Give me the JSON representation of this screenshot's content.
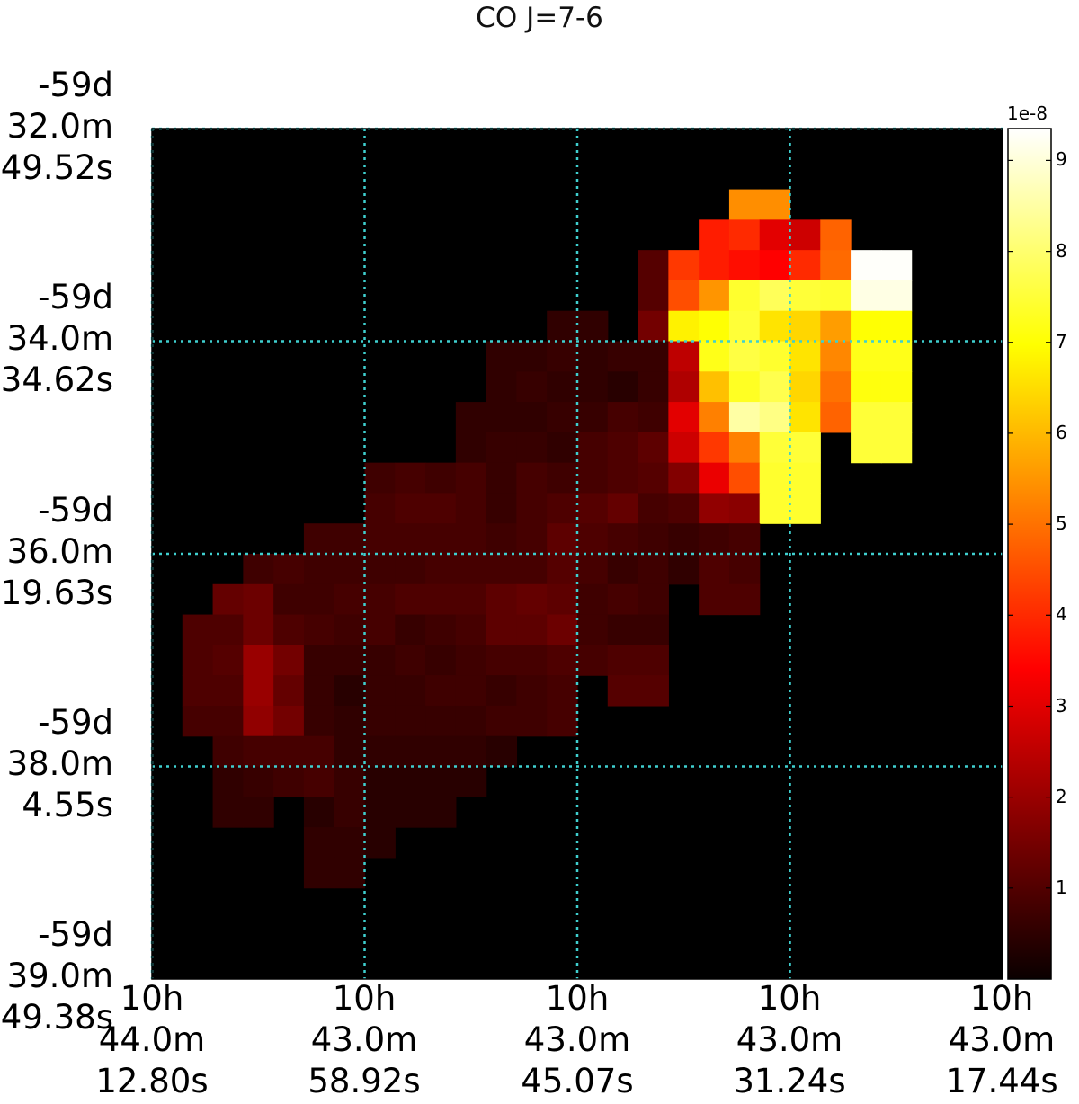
{
  "chart_data": {
    "type": "heatmap",
    "title": "CO J=7-6",
    "x_tick_labels": [
      "10h\n44.0m\n12.80s",
      "10h\n43.0m\n58.92s",
      "10h\n43.0m\n45.07s",
      "10h\n43.0m\n31.24s",
      "10h\n43.0m\n17.44s"
    ],
    "y_tick_labels": [
      "-59d\n32.0m\n49.52s",
      "-59d\n34.0m\n34.62s",
      "-59d\n36.0m\n19.63s",
      "-59d\n38.0m\n4.55s",
      "-59d\n39.0m\n49.38s"
    ],
    "grid": true,
    "grid_color": "#3fd0d0",
    "colormap": "hot",
    "colorbar": {
      "exponent_label": "1e-8",
      "tick_labels": [
        "1",
        "2",
        "3",
        "4",
        "5",
        "6",
        "7",
        "8",
        "9"
      ],
      "vmin": 0,
      "vmax": 9.35
    },
    "pixels": [
      {
        "x": 19,
        "y": 2,
        "v": 5.4
      },
      {
        "x": 20,
        "y": 2,
        "v": 5.4
      },
      {
        "x": 18,
        "y": 3,
        "v": 3.8
      },
      {
        "x": 19,
        "y": 3,
        "v": 4.0
      },
      {
        "x": 20,
        "y": 3,
        "v": 2.9
      },
      {
        "x": 21,
        "y": 3,
        "v": 2.6
      },
      {
        "x": 22,
        "y": 3,
        "v": 4.8
      },
      {
        "x": 16,
        "y": 4,
        "v": 1.0
      },
      {
        "x": 17,
        "y": 4,
        "v": 4.2
      },
      {
        "x": 18,
        "y": 4,
        "v": 3.8
      },
      {
        "x": 19,
        "y": 4,
        "v": 3.6
      },
      {
        "x": 20,
        "y": 4,
        "v": 3.4
      },
      {
        "x": 21,
        "y": 4,
        "v": 4.0
      },
      {
        "x": 22,
        "y": 4,
        "v": 4.9
      },
      {
        "x": 23,
        "y": 4,
        "v": 9.3
      },
      {
        "x": 24,
        "y": 4,
        "v": 9.3
      },
      {
        "x": 16,
        "y": 5,
        "v": 1.0
      },
      {
        "x": 17,
        "y": 5,
        "v": 4.5
      },
      {
        "x": 18,
        "y": 5,
        "v": 5.5
      },
      {
        "x": 19,
        "y": 5,
        "v": 7.4
      },
      {
        "x": 20,
        "y": 5,
        "v": 7.8
      },
      {
        "x": 21,
        "y": 5,
        "v": 7.5
      },
      {
        "x": 22,
        "y": 5,
        "v": 7.4
      },
      {
        "x": 23,
        "y": 5,
        "v": 9.1
      },
      {
        "x": 24,
        "y": 5,
        "v": 9.1
      },
      {
        "x": 13,
        "y": 6,
        "v": 0.5
      },
      {
        "x": 14,
        "y": 6,
        "v": 0.5
      },
      {
        "x": 16,
        "y": 6,
        "v": 1.4
      },
      {
        "x": 17,
        "y": 6,
        "v": 6.8
      },
      {
        "x": 18,
        "y": 6,
        "v": 7.0
      },
      {
        "x": 19,
        "y": 6,
        "v": 7.5
      },
      {
        "x": 20,
        "y": 6,
        "v": 6.6
      },
      {
        "x": 21,
        "y": 6,
        "v": 6.4
      },
      {
        "x": 22,
        "y": 6,
        "v": 5.6
      },
      {
        "x": 23,
        "y": 6,
        "v": 7.0
      },
      {
        "x": 24,
        "y": 6,
        "v": 7.0
      },
      {
        "x": 11,
        "y": 7,
        "v": 0.5
      },
      {
        "x": 12,
        "y": 7,
        "v": 0.5
      },
      {
        "x": 13,
        "y": 7,
        "v": 0.6
      },
      {
        "x": 14,
        "y": 7,
        "v": 0.5
      },
      {
        "x": 15,
        "y": 7,
        "v": 0.6
      },
      {
        "x": 16,
        "y": 7,
        "v": 0.6
      },
      {
        "x": 17,
        "y": 7,
        "v": 2.4
      },
      {
        "x": 18,
        "y": 7,
        "v": 7.2
      },
      {
        "x": 19,
        "y": 7,
        "v": 7.6
      },
      {
        "x": 20,
        "y": 7,
        "v": 7.4
      },
      {
        "x": 21,
        "y": 7,
        "v": 6.6
      },
      {
        "x": 22,
        "y": 7,
        "v": 5.3
      },
      {
        "x": 23,
        "y": 7,
        "v": 7.2
      },
      {
        "x": 24,
        "y": 7,
        "v": 7.2
      },
      {
        "x": 11,
        "y": 8,
        "v": 0.5
      },
      {
        "x": 12,
        "y": 8,
        "v": 0.6
      },
      {
        "x": 13,
        "y": 8,
        "v": 0.5
      },
      {
        "x": 14,
        "y": 8,
        "v": 0.5
      },
      {
        "x": 15,
        "y": 8,
        "v": 0.4
      },
      {
        "x": 16,
        "y": 8,
        "v": 0.6
      },
      {
        "x": 17,
        "y": 8,
        "v": 2.2
      },
      {
        "x": 18,
        "y": 8,
        "v": 6.1
      },
      {
        "x": 19,
        "y": 8,
        "v": 7.3
      },
      {
        "x": 20,
        "y": 8,
        "v": 7.7
      },
      {
        "x": 21,
        "y": 8,
        "v": 6.4
      },
      {
        "x": 22,
        "y": 8,
        "v": 5.0
      },
      {
        "x": 23,
        "y": 8,
        "v": 7.1
      },
      {
        "x": 24,
        "y": 8,
        "v": 7.1
      },
      {
        "x": 10,
        "y": 9,
        "v": 0.5
      },
      {
        "x": 11,
        "y": 9,
        "v": 0.5
      },
      {
        "x": 12,
        "y": 9,
        "v": 0.5
      },
      {
        "x": 13,
        "y": 9,
        "v": 0.6
      },
      {
        "x": 14,
        "y": 9,
        "v": 0.6
      },
      {
        "x": 15,
        "y": 9,
        "v": 0.8
      },
      {
        "x": 16,
        "y": 9,
        "v": 0.7
      },
      {
        "x": 17,
        "y": 9,
        "v": 2.9
      },
      {
        "x": 18,
        "y": 9,
        "v": 5.2
      },
      {
        "x": 19,
        "y": 9,
        "v": 8.5
      },
      {
        "x": 20,
        "y": 9,
        "v": 8.2
      },
      {
        "x": 21,
        "y": 9,
        "v": 6.6
      },
      {
        "x": 22,
        "y": 9,
        "v": 4.8
      },
      {
        "x": 23,
        "y": 9,
        "v": 7.5
      },
      {
        "x": 24,
        "y": 9,
        "v": 7.5
      },
      {
        "x": 10,
        "y": 10,
        "v": 0.5
      },
      {
        "x": 11,
        "y": 10,
        "v": 0.6
      },
      {
        "x": 12,
        "y": 10,
        "v": 0.6
      },
      {
        "x": 13,
        "y": 10,
        "v": 0.5
      },
      {
        "x": 14,
        "y": 10,
        "v": 0.8
      },
      {
        "x": 15,
        "y": 10,
        "v": 0.9
      },
      {
        "x": 16,
        "y": 10,
        "v": 1.1
      },
      {
        "x": 17,
        "y": 10,
        "v": 2.6
      },
      {
        "x": 18,
        "y": 10,
        "v": 4.2
      },
      {
        "x": 19,
        "y": 10,
        "v": 5.2
      },
      {
        "x": 20,
        "y": 10,
        "v": 7.5
      },
      {
        "x": 21,
        "y": 10,
        "v": 7.5
      },
      {
        "x": 23,
        "y": 10,
        "v": 7.5
      },
      {
        "x": 24,
        "y": 10,
        "v": 7.5
      },
      {
        "x": 7,
        "y": 11,
        "v": 0.7
      },
      {
        "x": 8,
        "y": 11,
        "v": 0.8
      },
      {
        "x": 9,
        "y": 11,
        "v": 0.7
      },
      {
        "x": 10,
        "y": 11,
        "v": 0.8
      },
      {
        "x": 11,
        "y": 11,
        "v": 0.6
      },
      {
        "x": 12,
        "y": 11,
        "v": 0.8
      },
      {
        "x": 13,
        "y": 11,
        "v": 0.7
      },
      {
        "x": 14,
        "y": 11,
        "v": 0.8
      },
      {
        "x": 15,
        "y": 11,
        "v": 0.9
      },
      {
        "x": 16,
        "y": 11,
        "v": 1.0
      },
      {
        "x": 17,
        "y": 11,
        "v": 1.6
      },
      {
        "x": 18,
        "y": 11,
        "v": 3.0
      },
      {
        "x": 19,
        "y": 11,
        "v": 4.5
      },
      {
        "x": 20,
        "y": 11,
        "v": 7.4
      },
      {
        "x": 21,
        "y": 11,
        "v": 7.4
      },
      {
        "x": 7,
        "y": 12,
        "v": 0.8
      },
      {
        "x": 8,
        "y": 12,
        "v": 0.9
      },
      {
        "x": 9,
        "y": 12,
        "v": 0.9
      },
      {
        "x": 10,
        "y": 12,
        "v": 0.8
      },
      {
        "x": 11,
        "y": 12,
        "v": 0.6
      },
      {
        "x": 12,
        "y": 12,
        "v": 0.8
      },
      {
        "x": 13,
        "y": 12,
        "v": 0.9
      },
      {
        "x": 14,
        "y": 12,
        "v": 1.0
      },
      {
        "x": 15,
        "y": 12,
        "v": 1.2
      },
      {
        "x": 16,
        "y": 12,
        "v": 0.8
      },
      {
        "x": 17,
        "y": 12,
        "v": 0.9
      },
      {
        "x": 18,
        "y": 12,
        "v": 1.8
      },
      {
        "x": 19,
        "y": 12,
        "v": 1.7
      },
      {
        "x": 20,
        "y": 12,
        "v": 7.4
      },
      {
        "x": 21,
        "y": 12,
        "v": 7.4
      },
      {
        "x": 5,
        "y": 13,
        "v": 0.7
      },
      {
        "x": 6,
        "y": 13,
        "v": 0.7
      },
      {
        "x": 7,
        "y": 13,
        "v": 0.8
      },
      {
        "x": 8,
        "y": 13,
        "v": 0.8
      },
      {
        "x": 9,
        "y": 13,
        "v": 0.8
      },
      {
        "x": 10,
        "y": 13,
        "v": 0.8
      },
      {
        "x": 11,
        "y": 13,
        "v": 0.7
      },
      {
        "x": 12,
        "y": 13,
        "v": 0.8
      },
      {
        "x": 13,
        "y": 13,
        "v": 1.1
      },
      {
        "x": 14,
        "y": 13,
        "v": 0.9
      },
      {
        "x": 15,
        "y": 13,
        "v": 0.8
      },
      {
        "x": 16,
        "y": 13,
        "v": 0.7
      },
      {
        "x": 17,
        "y": 13,
        "v": 0.6
      },
      {
        "x": 18,
        "y": 13,
        "v": 0.7
      },
      {
        "x": 19,
        "y": 13,
        "v": 0.8
      },
      {
        "x": 3,
        "y": 14,
        "v": 0.7
      },
      {
        "x": 4,
        "y": 14,
        "v": 0.8
      },
      {
        "x": 5,
        "y": 14,
        "v": 0.7
      },
      {
        "x": 6,
        "y": 14,
        "v": 0.7
      },
      {
        "x": 7,
        "y": 14,
        "v": 0.7
      },
      {
        "x": 8,
        "y": 14,
        "v": 0.7
      },
      {
        "x": 9,
        "y": 14,
        "v": 0.8
      },
      {
        "x": 10,
        "y": 14,
        "v": 0.8
      },
      {
        "x": 11,
        "y": 14,
        "v": 0.8
      },
      {
        "x": 12,
        "y": 14,
        "v": 0.8
      },
      {
        "x": 13,
        "y": 14,
        "v": 1.0
      },
      {
        "x": 14,
        "y": 14,
        "v": 0.8
      },
      {
        "x": 15,
        "y": 14,
        "v": 0.6
      },
      {
        "x": 16,
        "y": 14,
        "v": 0.7
      },
      {
        "x": 17,
        "y": 14,
        "v": 0.5
      },
      {
        "x": 18,
        "y": 14,
        "v": 0.9
      },
      {
        "x": 19,
        "y": 14,
        "v": 0.8
      },
      {
        "x": 2,
        "y": 15,
        "v": 1.2
      },
      {
        "x": 3,
        "y": 15,
        "v": 1.3
      },
      {
        "x": 4,
        "y": 15,
        "v": 0.7
      },
      {
        "x": 5,
        "y": 15,
        "v": 0.7
      },
      {
        "x": 6,
        "y": 15,
        "v": 0.8
      },
      {
        "x": 7,
        "y": 15,
        "v": 0.8
      },
      {
        "x": 8,
        "y": 15,
        "v": 0.9
      },
      {
        "x": 9,
        "y": 15,
        "v": 0.9
      },
      {
        "x": 10,
        "y": 15,
        "v": 0.9
      },
      {
        "x": 11,
        "y": 15,
        "v": 1.1
      },
      {
        "x": 12,
        "y": 15,
        "v": 1.2
      },
      {
        "x": 13,
        "y": 15,
        "v": 1.1
      },
      {
        "x": 14,
        "y": 15,
        "v": 0.7
      },
      {
        "x": 15,
        "y": 15,
        "v": 0.8
      },
      {
        "x": 16,
        "y": 15,
        "v": 0.7
      },
      {
        "x": 18,
        "y": 15,
        "v": 0.9
      },
      {
        "x": 19,
        "y": 15,
        "v": 0.9
      },
      {
        "x": 1,
        "y": 16,
        "v": 0.9
      },
      {
        "x": 2,
        "y": 16,
        "v": 0.9
      },
      {
        "x": 3,
        "y": 16,
        "v": 1.3
      },
      {
        "x": 4,
        "y": 16,
        "v": 0.9
      },
      {
        "x": 5,
        "y": 16,
        "v": 0.8
      },
      {
        "x": 6,
        "y": 16,
        "v": 0.7
      },
      {
        "x": 7,
        "y": 16,
        "v": 0.8
      },
      {
        "x": 8,
        "y": 16,
        "v": 0.6
      },
      {
        "x": 9,
        "y": 16,
        "v": 0.7
      },
      {
        "x": 10,
        "y": 16,
        "v": 0.8
      },
      {
        "x": 11,
        "y": 16,
        "v": 1.1
      },
      {
        "x": 12,
        "y": 16,
        "v": 1.1
      },
      {
        "x": 13,
        "y": 16,
        "v": 1.3
      },
      {
        "x": 14,
        "y": 16,
        "v": 0.7
      },
      {
        "x": 15,
        "y": 16,
        "v": 0.6
      },
      {
        "x": 16,
        "y": 16,
        "v": 0.6
      },
      {
        "x": 1,
        "y": 17,
        "v": 0.9
      },
      {
        "x": 2,
        "y": 17,
        "v": 1.0
      },
      {
        "x": 3,
        "y": 17,
        "v": 1.9
      },
      {
        "x": 4,
        "y": 17,
        "v": 1.4
      },
      {
        "x": 5,
        "y": 17,
        "v": 0.6
      },
      {
        "x": 6,
        "y": 17,
        "v": 0.6
      },
      {
        "x": 7,
        "y": 17,
        "v": 0.6
      },
      {
        "x": 8,
        "y": 17,
        "v": 0.7
      },
      {
        "x": 9,
        "y": 17,
        "v": 0.6
      },
      {
        "x": 10,
        "y": 17,
        "v": 0.7
      },
      {
        "x": 11,
        "y": 17,
        "v": 0.8
      },
      {
        "x": 12,
        "y": 17,
        "v": 0.8
      },
      {
        "x": 13,
        "y": 17,
        "v": 0.9
      },
      {
        "x": 14,
        "y": 17,
        "v": 0.8
      },
      {
        "x": 15,
        "y": 17,
        "v": 0.9
      },
      {
        "x": 16,
        "y": 17,
        "v": 0.9
      },
      {
        "x": 1,
        "y": 18,
        "v": 0.9
      },
      {
        "x": 2,
        "y": 18,
        "v": 0.9
      },
      {
        "x": 3,
        "y": 18,
        "v": 1.9
      },
      {
        "x": 4,
        "y": 18,
        "v": 1.2
      },
      {
        "x": 5,
        "y": 18,
        "v": 0.6
      },
      {
        "x": 6,
        "y": 18,
        "v": 0.4
      },
      {
        "x": 7,
        "y": 18,
        "v": 0.6
      },
      {
        "x": 8,
        "y": 18,
        "v": 0.6
      },
      {
        "x": 9,
        "y": 18,
        "v": 0.7
      },
      {
        "x": 10,
        "y": 18,
        "v": 0.7
      },
      {
        "x": 11,
        "y": 18,
        "v": 0.6
      },
      {
        "x": 12,
        "y": 18,
        "v": 0.7
      },
      {
        "x": 13,
        "y": 18,
        "v": 0.8
      },
      {
        "x": 15,
        "y": 18,
        "v": 1.0
      },
      {
        "x": 16,
        "y": 18,
        "v": 1.0
      },
      {
        "x": 1,
        "y": 19,
        "v": 0.8
      },
      {
        "x": 2,
        "y": 19,
        "v": 0.8
      },
      {
        "x": 3,
        "y": 19,
        "v": 1.8
      },
      {
        "x": 4,
        "y": 19,
        "v": 1.4
      },
      {
        "x": 5,
        "y": 19,
        "v": 0.6
      },
      {
        "x": 6,
        "y": 19,
        "v": 0.5
      },
      {
        "x": 7,
        "y": 19,
        "v": 0.6
      },
      {
        "x": 8,
        "y": 19,
        "v": 0.6
      },
      {
        "x": 9,
        "y": 19,
        "v": 0.6
      },
      {
        "x": 10,
        "y": 19,
        "v": 0.6
      },
      {
        "x": 11,
        "y": 19,
        "v": 0.7
      },
      {
        "x": 12,
        "y": 19,
        "v": 0.7
      },
      {
        "x": 13,
        "y": 19,
        "v": 0.8
      },
      {
        "x": 2,
        "y": 20,
        "v": 0.7
      },
      {
        "x": 3,
        "y": 20,
        "v": 0.8
      },
      {
        "x": 4,
        "y": 20,
        "v": 0.8
      },
      {
        "x": 5,
        "y": 20,
        "v": 0.8
      },
      {
        "x": 6,
        "y": 20,
        "v": 0.5
      },
      {
        "x": 7,
        "y": 20,
        "v": 0.5
      },
      {
        "x": 8,
        "y": 20,
        "v": 0.5
      },
      {
        "x": 9,
        "y": 20,
        "v": 0.5
      },
      {
        "x": 10,
        "y": 20,
        "v": 0.5
      },
      {
        "x": 11,
        "y": 20,
        "v": 0.4
      },
      {
        "x": 2,
        "y": 21,
        "v": 0.5
      },
      {
        "x": 3,
        "y": 21,
        "v": 0.6
      },
      {
        "x": 4,
        "y": 21,
        "v": 0.7
      },
      {
        "x": 5,
        "y": 21,
        "v": 0.8
      },
      {
        "x": 6,
        "y": 21,
        "v": 0.6
      },
      {
        "x": 7,
        "y": 21,
        "v": 0.4
      },
      {
        "x": 8,
        "y": 21,
        "v": 0.4
      },
      {
        "x": 9,
        "y": 21,
        "v": 0.4
      },
      {
        "x": 10,
        "y": 21,
        "v": 0.4
      },
      {
        "x": 2,
        "y": 22,
        "v": 0.5
      },
      {
        "x": 3,
        "y": 22,
        "v": 0.5
      },
      {
        "x": 5,
        "y": 22,
        "v": 0.4
      },
      {
        "x": 6,
        "y": 22,
        "v": 0.6
      },
      {
        "x": 7,
        "y": 22,
        "v": 0.4
      },
      {
        "x": 8,
        "y": 22,
        "v": 0.4
      },
      {
        "x": 9,
        "y": 22,
        "v": 0.4
      },
      {
        "x": 5,
        "y": 23,
        "v": 0.5
      },
      {
        "x": 6,
        "y": 23,
        "v": 0.5
      },
      {
        "x": 7,
        "y": 23,
        "v": 0.4
      },
      {
        "x": 5,
        "y": 24,
        "v": 0.5
      },
      {
        "x": 6,
        "y": 24,
        "v": 0.5
      }
    ]
  }
}
